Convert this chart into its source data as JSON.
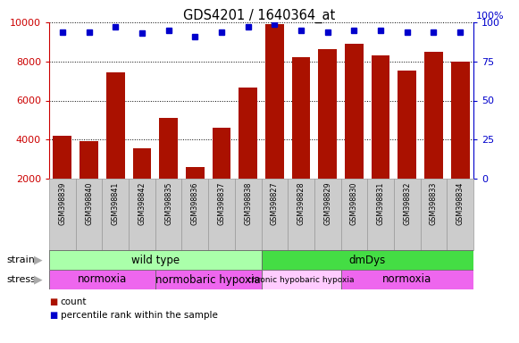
{
  "title": "GDS4201 / 1640364_at",
  "samples": [
    "GSM398839",
    "GSM398840",
    "GSM398841",
    "GSM398842",
    "GSM398835",
    "GSM398836",
    "GSM398837",
    "GSM398838",
    "GSM398827",
    "GSM398828",
    "GSM398829",
    "GSM398830",
    "GSM398831",
    "GSM398832",
    "GSM398833",
    "GSM398834"
  ],
  "counts": [
    4200,
    3900,
    7450,
    3550,
    5100,
    2600,
    4600,
    6650,
    9900,
    8200,
    8650,
    8900,
    8300,
    7550,
    8500,
    8000
  ],
  "percentile_ranks": [
    94,
    94,
    97,
    93,
    95,
    91,
    94,
    97,
    99,
    95,
    94,
    95,
    95,
    94,
    94,
    94
  ],
  "bar_color": "#aa1100",
  "dot_color": "#0000cc",
  "ylim_left": [
    2000,
    10000
  ],
  "ylim_right": [
    0,
    100
  ],
  "yticks_left": [
    2000,
    4000,
    6000,
    8000,
    10000
  ],
  "yticks_right": [
    0,
    25,
    50,
    75,
    100
  ],
  "strain_groups": [
    {
      "label": "wild type",
      "start": 0,
      "end": 8,
      "color": "#aaffaa"
    },
    {
      "label": "dmDys",
      "start": 8,
      "end": 16,
      "color": "#44dd44"
    }
  ],
  "stress_groups": [
    {
      "label": "normoxia",
      "start": 0,
      "end": 4,
      "color": "#ee66ee"
    },
    {
      "label": "normobaric hypoxia",
      "start": 4,
      "end": 8,
      "color": "#ee66ee"
    },
    {
      "label": "chronic hypobaric hypoxia",
      "start": 8,
      "end": 11,
      "color": "#ffccff"
    },
    {
      "label": "normoxia",
      "start": 11,
      "end": 16,
      "color": "#ee66ee"
    }
  ],
  "left_axis_color": "#cc0000",
  "right_axis_color": "#0000cc",
  "sample_box_color": "#cccccc",
  "sample_box_edge": "#999999"
}
